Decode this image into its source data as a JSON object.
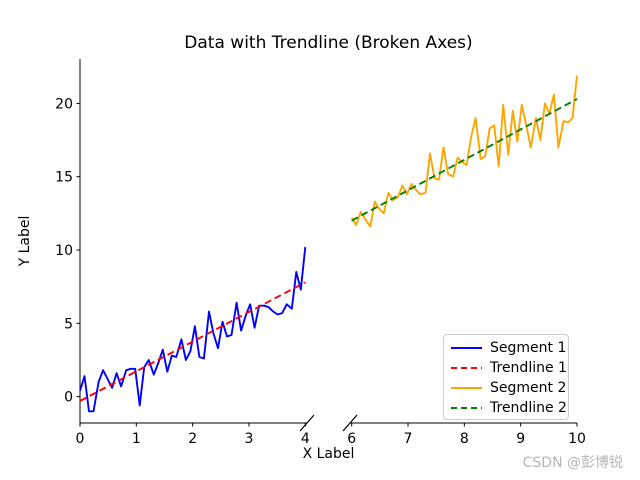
{
  "page": {
    "title": "Data with Trendline (Broken Axes)",
    "x_label": "X Label",
    "y_label": "Y Label",
    "watermark": "CSDN @彭博锐"
  },
  "colors": {
    "segment1": "#0000ff",
    "trendline1": "#ff0000",
    "segment2": "#ffa500",
    "trendline2": "#008000",
    "axis": "#000000",
    "tick_text": "#000000",
    "watermark": "#b5b5b5",
    "legend_border": "#cccccc"
  },
  "legend": {
    "position": "lower right",
    "items": [
      {
        "label": "Segment 1",
        "color": "#0000ff",
        "style": "solid"
      },
      {
        "label": "Trendline 1",
        "color": "#ff0000",
        "style": "dashed"
      },
      {
        "label": "Segment 2",
        "color": "#ffa500",
        "style": "solid"
      },
      {
        "label": "Trendline 2",
        "color": "#008000",
        "style": "dashed"
      }
    ]
  },
  "chart_data": {
    "type": "line",
    "title": "Data with Trendline (Broken Axes)",
    "xlabel": "X Label",
    "ylabel": "Y Label",
    "broken_axes": true,
    "grid": false,
    "ylim": [
      -1.8,
      23.03
    ],
    "y_ticks": [
      0,
      5,
      10,
      15,
      20
    ],
    "axes": [
      {
        "name": "left",
        "xlim": [
          0,
          4.03
        ],
        "x_ticks": [
          0,
          1,
          2,
          3,
          4
        ]
      },
      {
        "name": "right",
        "xlim": [
          5.97,
          10.0
        ],
        "x_ticks": [
          6,
          7,
          8,
          9,
          10
        ]
      }
    ],
    "series": [
      {
        "name": "Segment 1",
        "axis": "left",
        "color": "#0000ff",
        "style": "solid",
        "x": [
          0.0,
          0.08,
          0.16,
          0.24,
          0.33,
          0.41,
          0.49,
          0.57,
          0.65,
          0.73,
          0.82,
          0.9,
          0.98,
          1.06,
          1.14,
          1.22,
          1.31,
          1.39,
          1.47,
          1.55,
          1.63,
          1.71,
          1.8,
          1.88,
          1.96,
          2.04,
          2.12,
          2.2,
          2.29,
          2.37,
          2.45,
          2.53,
          2.61,
          2.69,
          2.78,
          2.86,
          2.94,
          3.02,
          3.1,
          3.18,
          3.27,
          3.35,
          3.43,
          3.51,
          3.59,
          3.67,
          3.76,
          3.84,
          3.92,
          4.0
        ],
        "y": [
          0.4,
          1.4,
          -1.0,
          -1.0,
          1.0,
          1.8,
          1.2,
          0.6,
          1.6,
          0.7,
          1.8,
          1.9,
          1.9,
          -0.6,
          2.0,
          2.5,
          1.5,
          2.3,
          3.2,
          1.7,
          2.8,
          2.7,
          3.9,
          2.5,
          3.1,
          4.8,
          2.7,
          2.6,
          5.8,
          4.3,
          3.3,
          5.1,
          4.1,
          4.2,
          6.4,
          4.5,
          5.5,
          6.3,
          4.7,
          6.2,
          6.2,
          6.1,
          5.8,
          5.6,
          5.7,
          6.3,
          6.0,
          8.5,
          7.3,
          10.2
        ]
      },
      {
        "name": "Trendline 1",
        "axis": "left",
        "color": "#ff0000",
        "style": "dashed",
        "x": [
          0.0,
          4.0
        ],
        "y": [
          -0.3,
          7.8
        ]
      },
      {
        "name": "Segment 2",
        "axis": "right",
        "color": "#ffa500",
        "style": "solid",
        "x": [
          6.0,
          6.08,
          6.16,
          6.24,
          6.33,
          6.41,
          6.49,
          6.57,
          6.65,
          6.73,
          6.82,
          6.9,
          6.98,
          7.06,
          7.14,
          7.22,
          7.31,
          7.39,
          7.47,
          7.55,
          7.63,
          7.71,
          7.8,
          7.88,
          7.96,
          8.04,
          8.12,
          8.2,
          8.29,
          8.37,
          8.45,
          8.53,
          8.61,
          8.69,
          8.78,
          8.86,
          8.94,
          9.02,
          9.1,
          9.18,
          9.27,
          9.35,
          9.43,
          9.51,
          9.59,
          9.67,
          9.76,
          9.84,
          9.92,
          10.0
        ],
        "y": [
          12.2,
          11.7,
          12.6,
          12.1,
          11.6,
          13.3,
          12.8,
          12.5,
          13.9,
          13.4,
          13.6,
          14.4,
          13.8,
          14.5,
          14.1,
          13.8,
          13.9,
          16.6,
          14.9,
          14.8,
          17.0,
          15.2,
          15.0,
          16.3,
          16.0,
          15.8,
          17.7,
          19.0,
          16.2,
          16.4,
          18.3,
          18.5,
          15.7,
          19.9,
          16.5,
          19.5,
          17.4,
          19.9,
          18.5,
          17.0,
          19.0,
          17.5,
          20.0,
          19.3,
          20.6,
          17.0,
          18.8,
          18.7,
          19.0,
          21.9
        ]
      },
      {
        "name": "Trendline 2",
        "axis": "right",
        "color": "#008000",
        "style": "dashed",
        "x": [
          6.0,
          10.0
        ],
        "y": [
          12.0,
          20.3
        ]
      }
    ],
    "legend": [
      "Segment 1",
      "Trendline 1",
      "Segment 2",
      "Trendline 2"
    ],
    "legend_position": "lower right"
  }
}
